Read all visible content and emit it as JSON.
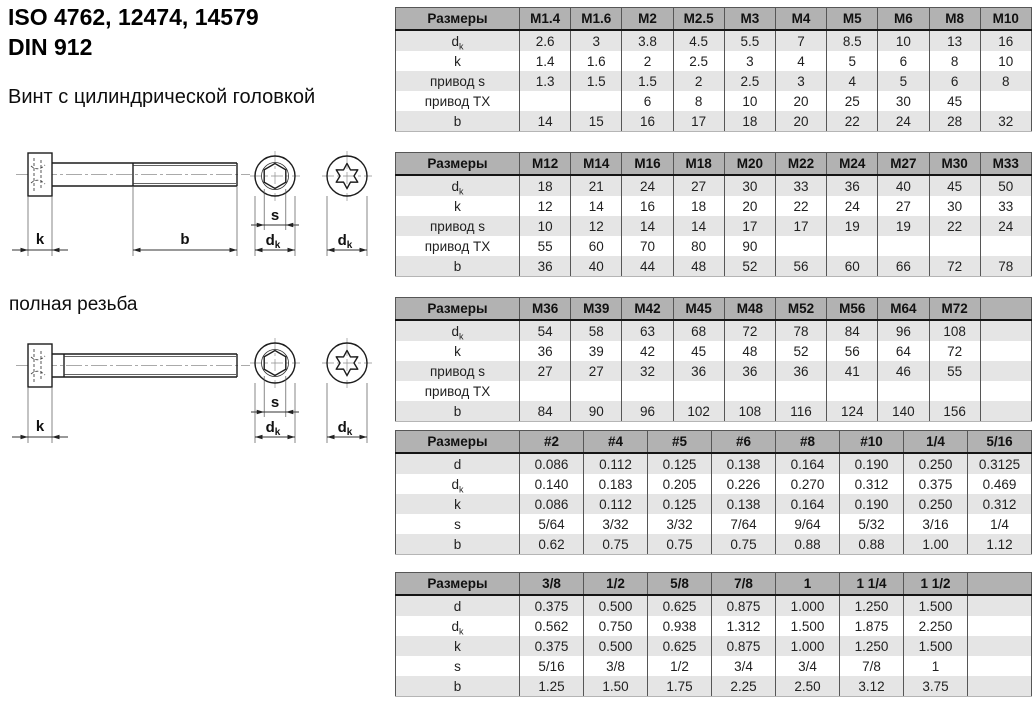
{
  "header": {
    "title_line1": "ISO 4762, 12474, 14579",
    "title_line2": "DIN 912",
    "subtitle": "Винт с цилиндрической головкой",
    "full_thread_label": "полная резьба"
  },
  "drawing": {
    "dim_head_height": "k",
    "dim_thread_length": "b",
    "dim_socket_size": "s",
    "dim_head_dia_main": "d",
    "dim_head_dia_sub": "k"
  },
  "colors": {
    "table_header_bg": "#b2b2b2",
    "table_stripe_bg": "#e5e5e5",
    "table_border": "#565656",
    "text": "#1f1f1f"
  },
  "tables": [
    {
      "corner_label": "Размеры",
      "columns": [
        "M1.4",
        "M1.6",
        "M2",
        "M2.5",
        "M3",
        "M4",
        "M5",
        "M6",
        "M8",
        "M10"
      ],
      "rows": [
        {
          "label": "d",
          "label_sub": "k",
          "values": [
            "2.6",
            "3",
            "3.8",
            "4.5",
            "5.5",
            "7",
            "8.5",
            "10",
            "13",
            "16"
          ]
        },
        {
          "label": "k",
          "label_sub": "",
          "values": [
            "1.4",
            "1.6",
            "2",
            "2.5",
            "3",
            "4",
            "5",
            "6",
            "8",
            "10"
          ]
        },
        {
          "label": "привод s",
          "label_sub": "",
          "values": [
            "1.3",
            "1.5",
            "1.5",
            "2",
            "2.5",
            "3",
            "4",
            "5",
            "6",
            "8"
          ]
        },
        {
          "label": "привод TX",
          "label_sub": "",
          "values": [
            "",
            "",
            "6",
            "8",
            "10",
            "20",
            "25",
            "30",
            "45",
            ""
          ]
        },
        {
          "label": "b",
          "label_sub": "",
          "values": [
            "14",
            "15",
            "16",
            "17",
            "18",
            "20",
            "22",
            "24",
            "28",
            "32"
          ]
        }
      ]
    },
    {
      "corner_label": "Размеры",
      "columns": [
        "M12",
        "M14",
        "M16",
        "M18",
        "M20",
        "M22",
        "M24",
        "M27",
        "M30",
        "M33"
      ],
      "rows": [
        {
          "label": "d",
          "label_sub": "k",
          "values": [
            "18",
            "21",
            "24",
            "27",
            "30",
            "33",
            "36",
            "40",
            "45",
            "50"
          ]
        },
        {
          "label": "k",
          "label_sub": "",
          "values": [
            "12",
            "14",
            "16",
            "18",
            "20",
            "22",
            "24",
            "27",
            "30",
            "33"
          ]
        },
        {
          "label": "привод s",
          "label_sub": "",
          "values": [
            "10",
            "12",
            "14",
            "14",
            "17",
            "17",
            "19",
            "19",
            "22",
            "24"
          ]
        },
        {
          "label": "привод TX",
          "label_sub": "",
          "values": [
            "55",
            "60",
            "70",
            "80",
            "90",
            "",
            "",
            "",
            "",
            ""
          ]
        },
        {
          "label": "b",
          "label_sub": "",
          "values": [
            "36",
            "40",
            "44",
            "48",
            "52",
            "56",
            "60",
            "66",
            "72",
            "78"
          ]
        }
      ]
    },
    {
      "corner_label": "Размеры",
      "columns": [
        "M36",
        "M39",
        "M42",
        "M45",
        "M48",
        "M52",
        "M56",
        "M64",
        "M72",
        ""
      ],
      "rows": [
        {
          "label": "d",
          "label_sub": "k",
          "values": [
            "54",
            "58",
            "63",
            "68",
            "72",
            "78",
            "84",
            "96",
            "108",
            ""
          ]
        },
        {
          "label": "k",
          "label_sub": "",
          "values": [
            "36",
            "39",
            "42",
            "45",
            "48",
            "52",
            "56",
            "64",
            "72",
            ""
          ]
        },
        {
          "label": "привод s",
          "label_sub": "",
          "values": [
            "27",
            "27",
            "32",
            "36",
            "36",
            "36",
            "41",
            "46",
            "55",
            ""
          ]
        },
        {
          "label": "привод TX",
          "label_sub": "",
          "values": [
            "",
            "",
            "",
            "",
            "",
            "",
            "",
            "",
            "",
            ""
          ]
        },
        {
          "label": "b",
          "label_sub": "",
          "values": [
            "84",
            "90",
            "96",
            "102",
            "108",
            "116",
            "124",
            "140",
            "156",
            ""
          ]
        }
      ]
    },
    {
      "corner_label": "Размеры",
      "columns": [
        "#2",
        "#4",
        "#5",
        "#6",
        "#8",
        "#10",
        "1/4",
        "5/16"
      ],
      "rows": [
        {
          "label": "d",
          "label_sub": "",
          "values": [
            "0.086",
            "0.112",
            "0.125",
            "0.138",
            "0.164",
            "0.190",
            "0.250",
            "0.3125"
          ]
        },
        {
          "label": "d",
          "label_sub": "k",
          "values": [
            "0.140",
            "0.183",
            "0.205",
            "0.226",
            "0.270",
            "0.312",
            "0.375",
            "0.469"
          ]
        },
        {
          "label": "k",
          "label_sub": "",
          "values": [
            "0.086",
            "0.112",
            "0.125",
            "0.138",
            "0.164",
            "0.190",
            "0.250",
            "0.312"
          ]
        },
        {
          "label": "s",
          "label_sub": "",
          "values": [
            "5/64",
            "3/32",
            "3/32",
            "7/64",
            "9/64",
            "5/32",
            "3/16",
            "1/4"
          ]
        },
        {
          "label": "b",
          "label_sub": "",
          "values": [
            "0.62",
            "0.75",
            "0.75",
            "0.75",
            "0.88",
            "0.88",
            "1.00",
            "1.12"
          ]
        }
      ]
    },
    {
      "corner_label": "Размеры",
      "columns": [
        "3/8",
        "1/2",
        "5/8",
        "7/8",
        "1",
        "1 1/4",
        "1 1/2",
        ""
      ],
      "rows": [
        {
          "label": "d",
          "label_sub": "",
          "values": [
            "0.375",
            "0.500",
            "0.625",
            "0.875",
            "1.000",
            "1.250",
            "1.500",
            ""
          ]
        },
        {
          "label": "d",
          "label_sub": "k",
          "values": [
            "0.562",
            "0.750",
            "0.938",
            "1.312",
            "1.500",
            "1.875",
            "2.250",
            ""
          ]
        },
        {
          "label": "k",
          "label_sub": "",
          "values": [
            "0.375",
            "0.500",
            "0.625",
            "0.875",
            "1.000",
            "1.250",
            "1.500",
            ""
          ]
        },
        {
          "label": "s",
          "label_sub": "",
          "values": [
            "5/16",
            "3/8",
            "1/2",
            "3/4",
            "3/4",
            "7/8",
            "1",
            ""
          ]
        },
        {
          "label": "b",
          "label_sub": "",
          "values": [
            "1.25",
            "1.50",
            "1.75",
            "2.25",
            "2.50",
            "3.12",
            "3.75",
            ""
          ]
        }
      ]
    }
  ]
}
